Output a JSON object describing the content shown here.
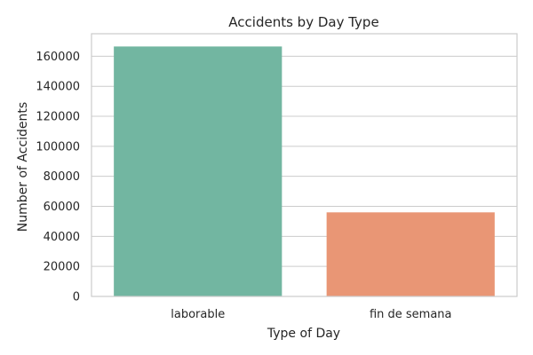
{
  "chart_data": {
    "type": "bar",
    "title": "Accidents by Day Type",
    "xlabel": "Type of Day",
    "ylabel": "Number of Accidents",
    "categories": [
      "laborable",
      "fin de semana"
    ],
    "values": [
      166500,
      56000
    ],
    "ylim": [
      0,
      175000
    ],
    "yticks": [
      0,
      20000,
      40000,
      60000,
      80000,
      100000,
      120000,
      140000,
      160000
    ],
    "ytick_labels": [
      "0",
      "20000",
      "40000",
      "60000",
      "80000",
      "100000",
      "120000",
      "140000",
      "160000"
    ],
    "colors": [
      "#72b6a1",
      "#e99675"
    ],
    "grid": true,
    "legend": "none"
  }
}
